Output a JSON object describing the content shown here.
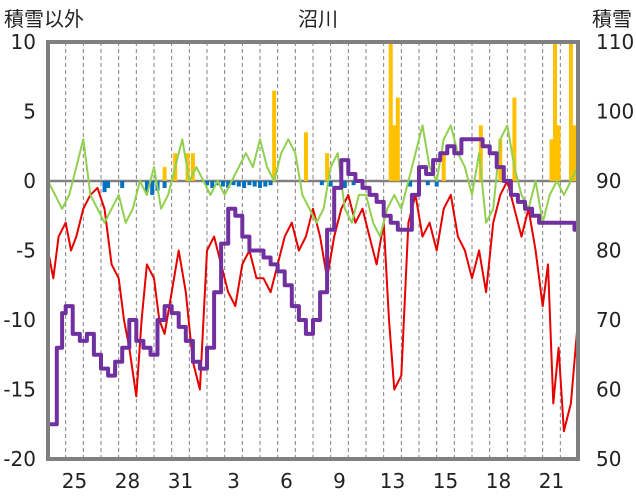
{
  "chart_data": {
    "type": "line",
    "title": "沼川",
    "left_axis_label": "積雪以外",
    "right_axis_label": "積雪",
    "left_ylim": [
      -20,
      10
    ],
    "left_ticks": [
      10,
      5,
      0,
      -5,
      -10,
      -15,
      -20
    ],
    "right_ylim": [
      50,
      110
    ],
    "right_ticks": [
      110,
      100,
      90,
      80,
      70,
      60,
      50
    ],
    "x_tick_labels": [
      "25",
      "28",
      "31",
      "3",
      "6",
      "9",
      "13",
      "15",
      "18",
      "21"
    ],
    "x_tick_positions": [
      1.5,
      4.5,
      7.5,
      10.5,
      13.5,
      16.5,
      19.5,
      22.5,
      25.5,
      28.5
    ],
    "x_range": [
      0,
      30
    ],
    "grid": "vertical dashed",
    "colors": {
      "frame": "#808080",
      "grid": "#808080",
      "red": "#e60000",
      "green": "#92d050",
      "purple": "#7030a0",
      "orange": "#ffc000",
      "blue": "#0070c0"
    },
    "series": [
      {
        "axis": "left",
        "color": "red",
        "style": "line",
        "x": [
          0,
          0.3,
          0.6,
          1,
          1.3,
          1.6,
          2,
          2.4,
          2.8,
          3.2,
          3.6,
          4,
          4.3,
          4.6,
          5,
          5.3,
          5.6,
          6,
          6.3,
          6.6,
          7,
          7.4,
          7.8,
          8.2,
          8.6,
          9,
          9.4,
          9.8,
          10.2,
          10.6,
          11,
          11.4,
          11.8,
          12.2,
          12.6,
          13,
          13.4,
          13.8,
          14.2,
          14.6,
          15,
          15.4,
          15.8,
          16.2,
          16.6,
          17,
          17.4,
          17.8,
          18.2,
          18.6,
          19,
          19.3,
          19.6,
          20,
          20.4,
          20.8,
          21.2,
          21.6,
          22,
          22.4,
          22.8,
          23.2,
          23.6,
          24,
          24.4,
          24.8,
          25.2,
          25.6,
          26,
          26.4,
          26.8,
          27.2,
          27.6,
          28,
          28.3,
          28.6,
          28.9,
          29.2,
          29.6,
          30
        ],
        "y": [
          -5,
          -7,
          -4,
          -3,
          -5,
          -4,
          -2,
          -1,
          -0.5,
          -2,
          -6,
          -7,
          -10,
          -12,
          -15.5,
          -10,
          -6,
          -7,
          -10,
          -11,
          -8,
          -5,
          -8,
          -13,
          -15,
          -5,
          -4,
          -6,
          -8,
          -9,
          -6,
          -5,
          -7,
          -7,
          -8,
          -6,
          -4,
          -3,
          -5,
          -4,
          -2,
          -4,
          -7,
          -4,
          -2,
          -1,
          -3,
          -2,
          -4,
          -6,
          -3,
          -10,
          -15,
          -14,
          -3,
          -1,
          -4,
          -3,
          -5,
          -2,
          -1,
          -4,
          -5,
          -7,
          -5,
          -8,
          -3,
          -1,
          0,
          -2,
          -4,
          -2,
          -5,
          -9,
          -6,
          -16,
          -12,
          -18,
          -16,
          -10
        ]
      },
      {
        "axis": "left",
        "color": "green",
        "style": "line",
        "x": [
          0,
          0.4,
          0.8,
          1.2,
          1.6,
          2,
          2.4,
          2.8,
          3.2,
          3.6,
          4,
          4.4,
          4.8,
          5.2,
          5.6,
          6,
          6.4,
          6.8,
          7.2,
          7.6,
          8,
          8.4,
          8.8,
          9.2,
          9.6,
          10,
          10.4,
          10.8,
          11.2,
          11.6,
          12,
          12.4,
          12.8,
          13.2,
          13.6,
          14,
          14.4,
          14.8,
          15.2,
          15.6,
          16,
          16.4,
          16.8,
          17.2,
          17.6,
          18,
          18.4,
          18.8,
          19.2,
          19.6,
          20,
          20.4,
          20.8,
          21.2,
          21.6,
          22,
          22.4,
          22.8,
          23.2,
          23.6,
          24,
          24.4,
          24.8,
          25.2,
          25.6,
          26,
          26.4,
          26.8,
          27.2,
          27.6,
          28,
          28.4,
          28.8,
          29.2,
          29.6,
          30
        ],
        "y": [
          0,
          -1,
          -2,
          -1,
          1,
          3,
          -1,
          -2,
          -3,
          -2,
          -1,
          -3,
          -2,
          0,
          -1,
          1,
          -2,
          -1,
          1,
          3,
          0,
          1,
          0,
          -1,
          0,
          -1,
          0,
          1,
          2,
          1,
          3,
          1,
          0,
          2,
          3,
          2,
          -1,
          -2,
          -3,
          -2,
          1,
          2,
          -2,
          -3,
          -1,
          -1,
          -3,
          -4,
          -2,
          -1,
          -2,
          0,
          2,
          4,
          1,
          0,
          3,
          4,
          2,
          1,
          -1,
          2,
          -3,
          -2,
          3,
          4,
          1,
          -1,
          -2,
          0,
          -3,
          -1,
          0,
          -1,
          0,
          1
        ]
      },
      {
        "axis": "right",
        "color": "purple",
        "style": "thick step",
        "x": [
          0,
          0.5,
          0.8,
          1,
          1.4,
          1.8,
          2.2,
          2.6,
          3,
          3.4,
          3.8,
          4.2,
          4.6,
          5,
          5.4,
          5.8,
          6.2,
          6.6,
          7,
          7.4,
          7.8,
          8.2,
          8.6,
          9,
          9.4,
          9.8,
          10.2,
          10.6,
          11,
          11.4,
          11.8,
          12.2,
          12.6,
          13,
          13.4,
          13.8,
          14.2,
          14.6,
          15,
          15.4,
          15.8,
          16.2,
          16.6,
          17,
          17.4,
          17.8,
          18.2,
          18.6,
          19,
          19.4,
          19.8,
          20.2,
          20.6,
          21,
          21.4,
          21.8,
          22.2,
          22.6,
          23,
          23.4,
          23.8,
          24.2,
          24.6,
          25,
          25.4,
          25.8,
          26.2,
          26.6,
          27,
          27.4,
          27.8,
          28.2,
          28.6,
          29,
          29.4,
          29.8,
          30
        ],
        "y": [
          55,
          66,
          71,
          72,
          68,
          67,
          68,
          65,
          63,
          62,
          64,
          66,
          70,
          67,
          66,
          65,
          70,
          72,
          71,
          69,
          67,
          64,
          63,
          66,
          74,
          81,
          86,
          85,
          82,
          80,
          80,
          79,
          78,
          77,
          75,
          72,
          70,
          68,
          70,
          74,
          83,
          89,
          93,
          91,
          90,
          89,
          88,
          87,
          85,
          84,
          83,
          83,
          88,
          92,
          91,
          93,
          94,
          95,
          94,
          96,
          96,
          96,
          95,
          94,
          92,
          90,
          88,
          87,
          86,
          85,
          84,
          84,
          84,
          84,
          84,
          83,
          82
        ]
      },
      {
        "axis": "left",
        "color": "orange",
        "style": "bar-up",
        "x": [
          6.6,
          7.2,
          7.9,
          8.2,
          12.8,
          14.6,
          15.8,
          19.4,
          19.6,
          19.8,
          22.4,
          24.5,
          25.6,
          26.4,
          28.5,
          28.7,
          28.9,
          29.6,
          29.8
        ],
        "y": [
          1,
          2,
          2,
          2,
          6.5,
          3.5,
          2,
          10,
          4,
          6,
          2,
          4,
          3,
          6,
          3,
          10,
          4,
          10,
          4
        ]
      },
      {
        "axis": "left",
        "color": "blue",
        "style": "bar-down",
        "x": [
          3.2,
          3.4,
          4.2,
          5.6,
          5.9,
          6.2,
          6.6,
          9.0,
          9.3,
          9.6,
          9.9,
          10.2,
          10.5,
          10.8,
          11.1,
          11.4,
          11.7,
          12.0,
          12.3,
          12.6,
          15.5,
          16.0,
          16.8,
          17.3,
          20.5,
          21.0,
          21.5,
          22.0
        ],
        "y": [
          -0.8,
          -0.5,
          -0.5,
          -0.8,
          -1,
          -0.7,
          -0.5,
          -0.3,
          -0.5,
          -0.3,
          -0.4,
          -0.5,
          -0.3,
          -0.4,
          -0.5,
          -0.3,
          -0.4,
          -0.5,
          -0.4,
          -0.3,
          -0.3,
          -0.4,
          -0.5,
          -0.3,
          -0.4,
          -0.5,
          -0.3,
          -0.4
        ]
      }
    ]
  }
}
